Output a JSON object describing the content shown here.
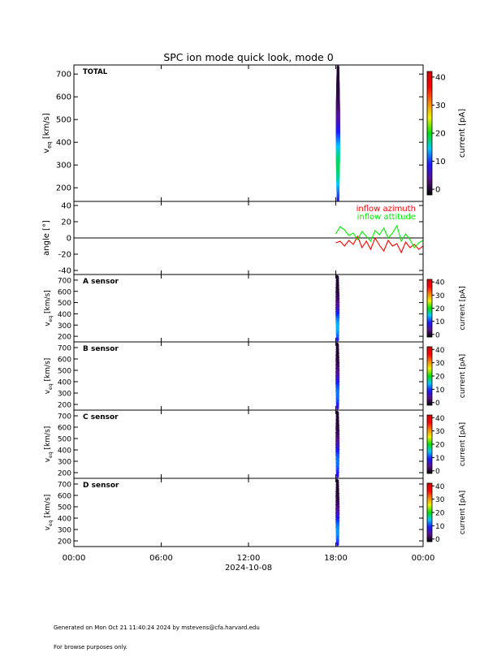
{
  "chart_data": {
    "title": "SPC ion mode quick look, mode 0",
    "type": "heatmap",
    "x_axis": {
      "ticks": [
        "00:00",
        "06:00",
        "12:00",
        "18:00",
        "00:00"
      ],
      "tick_hours": [
        0,
        6,
        12,
        18,
        24
      ],
      "range_hours": [
        0,
        24
      ],
      "date_label": "2024-10-08"
    },
    "colorbar_colors": [
      "#000000",
      "#5b0f8f",
      "#1a1aff",
      "#00c8ff",
      "#00e000",
      "#f0f000",
      "#ff8000",
      "#ff0000",
      "#cc0000"
    ],
    "panels": [
      {
        "kind": "spectrogram",
        "label": "TOTAL",
        "ylabel_main": "v",
        "ylabel_sub": "eq",
        "ylabel_unit": "[km/s]",
        "ylim": [
          140,
          740
        ],
        "yticks": [
          200,
          300,
          400,
          500,
          600,
          700
        ],
        "colorbar_label": "current [pA]",
        "colorbar_range": [
          -2,
          42
        ],
        "colorbar_ticks": [
          0,
          10,
          20,
          30,
          40
        ],
        "data": {
          "time_range_hours": [
            18.0,
            18.3
          ],
          "velocity_range": [
            145,
            735
          ],
          "peak_velocity": 300,
          "peak_current": 18,
          "style": "gapped"
        }
      },
      {
        "kind": "line",
        "ylabel": "angle [°]",
        "ylim": [
          -45,
          45
        ],
        "yticks": [
          -40,
          -20,
          0,
          20,
          40
        ],
        "zero_line": true,
        "legend": [
          {
            "text": "inflow azimuth",
            "color": "#ff0000"
          },
          {
            "text": "inflow attitude",
            "color": "#00ee00"
          }
        ],
        "series": [
          {
            "name": "inflow azimuth",
            "color": "#ff0000",
            "x": [
              18.0,
              18.3,
              18.6,
              18.9,
              19.2,
              19.5,
              19.8,
              20.1,
              20.4,
              20.7,
              21.0,
              21.3,
              21.6,
              21.9,
              22.2,
              22.5,
              22.8,
              23.1,
              23.4,
              23.7,
              24.0
            ],
            "values": [
              -6,
              -4,
              -10,
              -3,
              -8,
              2,
              -12,
              -4,
              -14,
              0,
              -9,
              -16,
              -3,
              -10,
              -7,
              -18,
              -5,
              -12,
              -8,
              -14,
              -10
            ]
          },
          {
            "name": "inflow attitude",
            "color": "#00ee00",
            "x": [
              18.0,
              18.3,
              18.6,
              18.9,
              19.2,
              19.5,
              19.8,
              20.1,
              20.4,
              20.7,
              21.0,
              21.3,
              21.6,
              21.9,
              22.2,
              22.5,
              22.8,
              23.1,
              23.4,
              23.7,
              24.0
            ],
            "values": [
              5,
              14,
              10,
              3,
              6,
              -2,
              8,
              2,
              -4,
              9,
              4,
              12,
              0,
              6,
              15,
              -4,
              5,
              -2,
              -12,
              -6,
              -3
            ]
          }
        ]
      },
      {
        "kind": "spectrogram",
        "label": "A sensor",
        "ylabel_main": "v",
        "ylabel_sub": "eq",
        "ylabel_unit": "[km/s]",
        "ylim": [
          150,
          750
        ],
        "yticks": [
          200,
          300,
          400,
          500,
          600,
          700
        ],
        "colorbar_label": "current [pA]",
        "colorbar_range": [
          -2,
          42
        ],
        "colorbar_ticks": [
          0,
          10,
          20,
          30,
          40
        ],
        "data": {
          "time_range_hours": [
            18.0,
            18.2
          ],
          "velocity_range": [
            160,
            740
          ],
          "peak_velocity": 290,
          "peak_current": 14,
          "style": "dense"
        }
      },
      {
        "kind": "spectrogram",
        "label": "B sensor",
        "ylabel_main": "v",
        "ylabel_sub": "eq",
        "ylabel_unit": "[km/s]",
        "ylim": [
          150,
          750
        ],
        "yticks": [
          200,
          300,
          400,
          500,
          600,
          700
        ],
        "colorbar_label": "current [pA]",
        "colorbar_range": [
          -2,
          42
        ],
        "colorbar_ticks": [
          0,
          10,
          20,
          30,
          40
        ],
        "data": {
          "time_range_hours": [
            18.0,
            18.2
          ],
          "velocity_range": [
            160,
            740
          ],
          "peak_velocity": 300,
          "peak_current": 12,
          "style": "dense"
        }
      },
      {
        "kind": "spectrogram",
        "label": "C sensor",
        "ylabel_main": "v",
        "ylabel_sub": "eq",
        "ylabel_unit": "[km/s]",
        "ylim": [
          150,
          750
        ],
        "yticks": [
          200,
          300,
          400,
          500,
          600,
          700
        ],
        "colorbar_label": "current [pA]",
        "colorbar_range": [
          -2,
          42
        ],
        "colorbar_ticks": [
          0,
          10,
          20,
          30,
          40
        ],
        "data": {
          "time_range_hours": [
            18.0,
            18.2
          ],
          "velocity_range": [
            160,
            740
          ],
          "peak_velocity": 300,
          "peak_current": 12,
          "style": "dense"
        }
      },
      {
        "kind": "spectrogram",
        "label": "D sensor",
        "ylabel_main": "v",
        "ylabel_sub": "eq",
        "ylabel_unit": "[km/s]",
        "ylim": [
          150,
          750
        ],
        "yticks": [
          200,
          300,
          400,
          500,
          600,
          700
        ],
        "colorbar_label": "current [pA]",
        "colorbar_range": [
          -2,
          42
        ],
        "colorbar_ticks": [
          0,
          10,
          20,
          30,
          40
        ],
        "data": {
          "time_range_hours": [
            18.0,
            18.2
          ],
          "velocity_range": [
            160,
            740
          ],
          "peak_velocity": 290,
          "peak_current": 13,
          "style": "dense"
        }
      }
    ]
  },
  "footer": {
    "line1": "Generated on Mon Oct 21 11:40:24 2024 by mstevens@cfa.harvard.edu",
    "line2": "For browse purposes only."
  }
}
